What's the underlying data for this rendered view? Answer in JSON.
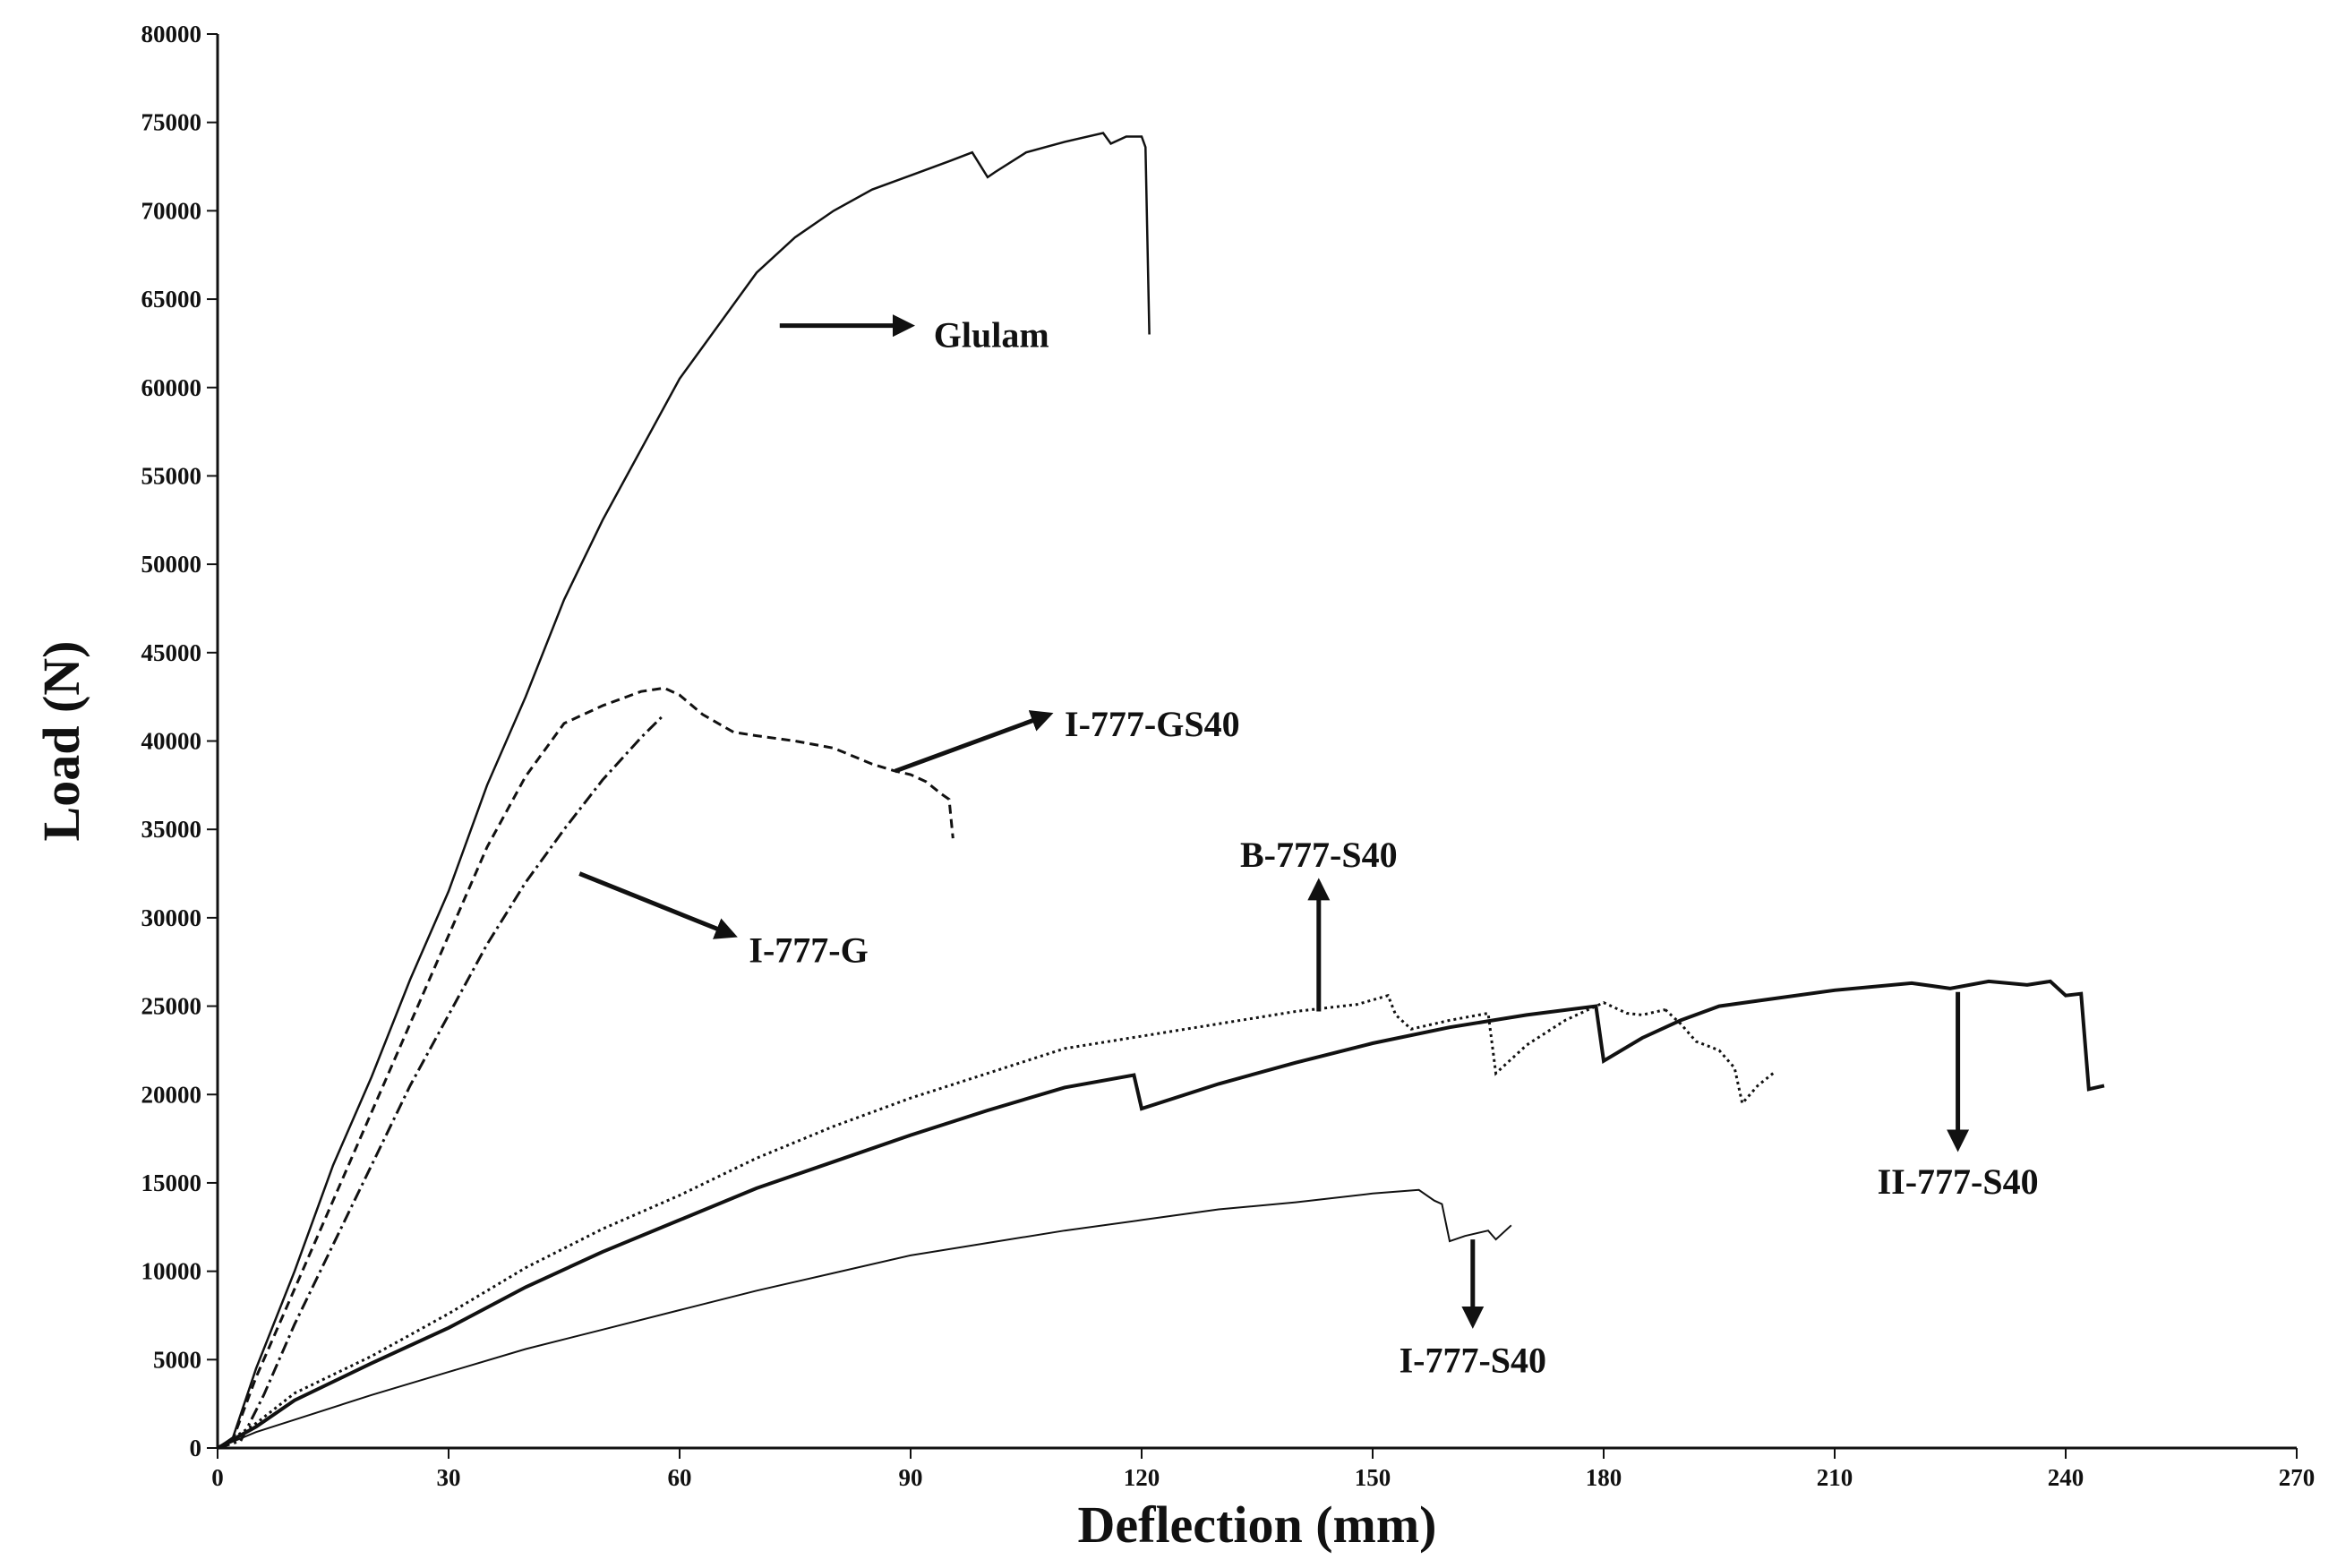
{
  "chart_data": {
    "type": "line",
    "title": "",
    "xlabel": "Deflection (mm)",
    "ylabel": "Load (N)",
    "xlim": [
      0,
      270
    ],
    "ylim": [
      0,
      80000
    ],
    "xticks": [
      0,
      30,
      60,
      90,
      120,
      150,
      180,
      210,
      240,
      270
    ],
    "yticks": [
      0,
      5000,
      10000,
      15000,
      20000,
      25000,
      30000,
      35000,
      40000,
      45000,
      50000,
      55000,
      60000,
      65000,
      70000,
      75000,
      80000
    ],
    "grid": false,
    "legend": "none",
    "series": [
      {
        "name": "Glulam",
        "style": "solid",
        "x": [
          0,
          2,
          5,
          10,
          15,
          20,
          25,
          30,
          35,
          40,
          45,
          50,
          55,
          60,
          65,
          70,
          75,
          80,
          85,
          90,
          95,
          98,
          100,
          101,
          105,
          110,
          115,
          116,
          118,
          120,
          120.5,
          121
        ],
        "y": [
          0,
          600,
          4500,
          10000,
          16000,
          21000,
          26500,
          31500,
          37500,
          42500,
          48000,
          52500,
          56500,
          60500,
          63500,
          66500,
          68500,
          70000,
          71200,
          72000,
          72800,
          73300,
          71900,
          72200,
          73300,
          73900,
          74400,
          73800,
          74200,
          74200,
          73600,
          63000
        ]
      },
      {
        "name": "I-777-GS40",
        "style": "dashed",
        "x": [
          0,
          2,
          5,
          10,
          15,
          20,
          25,
          30,
          35,
          40,
          45,
          50,
          55,
          58,
          60,
          63,
          67,
          70,
          75,
          80,
          85,
          88,
          90,
          92,
          94,
          95,
          95.5
        ],
        "y": [
          0,
          500,
          4000,
          9000,
          14000,
          19000,
          24000,
          29000,
          34000,
          38000,
          41000,
          42000,
          42800,
          43000,
          42600,
          41500,
          40500,
          40300,
          40000,
          39600,
          38700,
          38300,
          38100,
          37700,
          37000,
          36700,
          34500
        ]
      },
      {
        "name": "I-777-G",
        "style": "dashdot",
        "x": [
          0,
          3,
          6,
          10,
          15,
          20,
          25,
          30,
          35,
          40,
          45,
          50,
          55,
          58
        ],
        "y": [
          0,
          400,
          3000,
          7000,
          11500,
          16000,
          20500,
          24500,
          28500,
          32000,
          35000,
          37800,
          40200,
          41500
        ]
      },
      {
        "name": "B-777-S40",
        "style": "dotted",
        "x": [
          0,
          5,
          10,
          20,
          30,
          40,
          50,
          60,
          70,
          80,
          90,
          100,
          110,
          120,
          130,
          140,
          148,
          152,
          153,
          155,
          160,
          165,
          166,
          170,
          175,
          180,
          183,
          185,
          188
        ],
        "y": [
          0,
          1400,
          3100,
          5200,
          7600,
          10200,
          12400,
          14300,
          16400,
          18200,
          19800,
          21200,
          22600,
          23300,
          24000,
          24700,
          25100,
          25600,
          24500,
          23700,
          24200,
          24600,
          21200,
          22800,
          24200,
          25200,
          24600,
          24500,
          24800
        ]
      },
      {
        "name": "II-777-S40",
        "style": "solid-bold",
        "x": [
          0,
          5,
          10,
          20,
          30,
          40,
          50,
          60,
          70,
          80,
          90,
          100,
          110,
          119,
          120,
          130,
          140,
          150,
          160,
          170,
          179,
          180,
          185,
          190,
          195,
          200,
          210,
          220,
          225,
          230,
          235,
          238,
          240,
          242,
          243,
          245
        ],
        "y": [
          0,
          1200,
          2700,
          4800,
          6800,
          9100,
          11100,
          12900,
          14700,
          16200,
          17700,
          19100,
          20400,
          21100,
          19200,
          20600,
          21800,
          22900,
          23800,
          24500,
          25000,
          21900,
          23200,
          24200,
          25000,
          25300,
          25900,
          26300,
          26000,
          26400,
          26200,
          26400,
          25600,
          25700,
          20300,
          20500
        ]
      },
      {
        "name": "B-777-S40 (branch)",
        "style": "dotted",
        "x": [
          188,
          190,
          192,
          195,
          197,
          198,
          200,
          202
        ],
        "y": [
          24800,
          24000,
          23000,
          22500,
          21500,
          19500,
          20500,
          21200
        ]
      },
      {
        "name": "I-777-S40",
        "style": "solid-thin",
        "x": [
          0,
          5,
          10,
          20,
          30,
          40,
          50,
          60,
          70,
          80,
          90,
          100,
          110,
          120,
          130,
          140,
          150,
          156,
          158,
          159,
          160,
          162,
          165,
          166,
          168
        ],
        "y": [
          0,
          900,
          1600,
          3000,
          4300,
          5600,
          6700,
          7800,
          8900,
          9900,
          10900,
          11600,
          12300,
          12900,
          13500,
          13900,
          14400,
          14600,
          14000,
          13800,
          11700,
          12000,
          12300,
          11800,
          12600
        ]
      }
    ],
    "annotations": [
      {
        "text": "Glulam",
        "direction": "right"
      },
      {
        "text": "I-777-GS40",
        "direction": "up-right"
      },
      {
        "text": "I-777-G",
        "direction": "down-right"
      },
      {
        "text": "B-777-S40",
        "direction": "up"
      },
      {
        "text": "II-777-S40",
        "direction": "down"
      },
      {
        "text": "I-777-S40",
        "direction": "down"
      }
    ]
  }
}
